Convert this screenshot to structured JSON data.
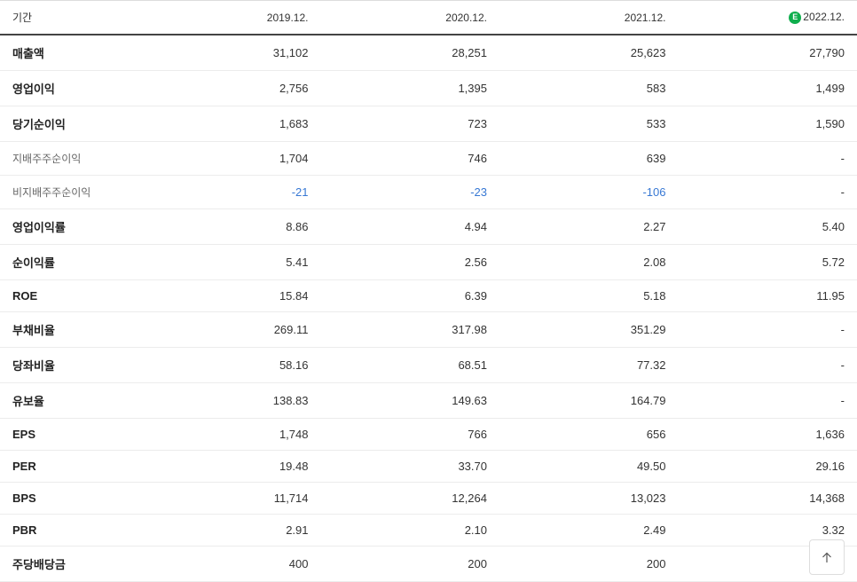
{
  "header": {
    "period_label": "기간",
    "columns": [
      "2019.12.",
      "2020.12.",
      "2021.12.",
      "2022.12."
    ],
    "estimate_badge": "E",
    "estimate_column_index": 3
  },
  "rows": [
    {
      "label": "매출액",
      "sub": false,
      "values": [
        "31,102",
        "28,251",
        "25,623",
        "27,790"
      ],
      "neg": [
        false,
        false,
        false,
        false
      ]
    },
    {
      "label": "영업이익",
      "sub": false,
      "values": [
        "2,756",
        "1,395",
        "583",
        "1,499"
      ],
      "neg": [
        false,
        false,
        false,
        false
      ]
    },
    {
      "label": "당기순이익",
      "sub": false,
      "values": [
        "1,683",
        "723",
        "533",
        "1,590"
      ],
      "neg": [
        false,
        false,
        false,
        false
      ]
    },
    {
      "label": "지배주주순이익",
      "sub": true,
      "values": [
        "1,704",
        "746",
        "639",
        "-"
      ],
      "neg": [
        false,
        false,
        false,
        false
      ]
    },
    {
      "label": "비지배주주순이익",
      "sub": true,
      "values": [
        "-21",
        "-23",
        "-106",
        "-"
      ],
      "neg": [
        true,
        true,
        true,
        false
      ]
    },
    {
      "label": "영업이익률",
      "sub": false,
      "values": [
        "8.86",
        "4.94",
        "2.27",
        "5.40"
      ],
      "neg": [
        false,
        false,
        false,
        false
      ]
    },
    {
      "label": "순이익률",
      "sub": false,
      "values": [
        "5.41",
        "2.56",
        "2.08",
        "5.72"
      ],
      "neg": [
        false,
        false,
        false,
        false
      ]
    },
    {
      "label": "ROE",
      "sub": false,
      "values": [
        "15.84",
        "6.39",
        "5.18",
        "11.95"
      ],
      "neg": [
        false,
        false,
        false,
        false
      ]
    },
    {
      "label": "부채비율",
      "sub": false,
      "values": [
        "269.11",
        "317.98",
        "351.29",
        "-"
      ],
      "neg": [
        false,
        false,
        false,
        false
      ]
    },
    {
      "label": "당좌비율",
      "sub": false,
      "values": [
        "58.16",
        "68.51",
        "77.32",
        "-"
      ],
      "neg": [
        false,
        false,
        false,
        false
      ]
    },
    {
      "label": "유보율",
      "sub": false,
      "values": [
        "138.83",
        "149.63",
        "164.79",
        "-"
      ],
      "neg": [
        false,
        false,
        false,
        false
      ]
    },
    {
      "label": "EPS",
      "sub": false,
      "values": [
        "1,748",
        "766",
        "656",
        "1,636"
      ],
      "neg": [
        false,
        false,
        false,
        false
      ]
    },
    {
      "label": "PER",
      "sub": false,
      "values": [
        "19.48",
        "33.70",
        "49.50",
        "29.16"
      ],
      "neg": [
        false,
        false,
        false,
        false
      ]
    },
    {
      "label": "BPS",
      "sub": false,
      "values": [
        "11,714",
        "12,264",
        "13,023",
        "14,368"
      ],
      "neg": [
        false,
        false,
        false,
        false
      ]
    },
    {
      "label": "PBR",
      "sub": false,
      "values": [
        "2.91",
        "2.10",
        "2.49",
        "3.32"
      ],
      "neg": [
        false,
        false,
        false,
        false
      ]
    },
    {
      "label": "주당배당금",
      "sub": false,
      "values": [
        "400",
        "200",
        "200",
        ""
      ],
      "neg": [
        false,
        false,
        false,
        false
      ]
    }
  ],
  "colors": {
    "text": "#333333",
    "sub_text": "#666666",
    "negative": "#3778d4",
    "header_border": "#444444",
    "row_border": "#ececec",
    "badge_bg": "#0fae4d",
    "badge_fg": "#ffffff"
  }
}
